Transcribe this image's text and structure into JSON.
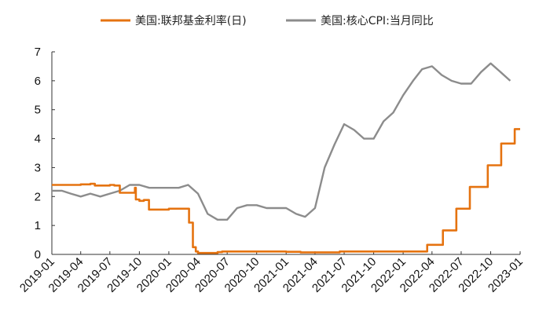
{
  "chart_data": {
    "type": "line",
    "legend_position": "top-center",
    "grid": false,
    "ylim": [
      0,
      7
    ],
    "y_ticks": [
      "0",
      "1",
      "2",
      "3",
      "4",
      "5",
      "6",
      "7"
    ],
    "x_ticks": [
      "2019-01",
      "2019-04",
      "2019-07",
      "2019-10",
      "2020-01",
      "2020-04",
      "2020-07",
      "2020-10",
      "2021-01",
      "2021-04",
      "2021-07",
      "2021-10",
      "2022-01",
      "2022-04",
      "2022-07",
      "2022-10",
      "2023-01"
    ],
    "series": [
      {
        "name": "美国:联邦基金利率(日)",
        "color": "#E57310",
        "step": true,
        "points": [
          [
            "2019-01-01",
            2.4
          ],
          [
            "2019-03-01",
            2.4
          ],
          [
            "2019-04-01",
            2.42
          ],
          [
            "2019-05-01",
            2.44
          ],
          [
            "2019-05-15",
            2.38
          ],
          [
            "2019-06-01",
            2.38
          ],
          [
            "2019-07-01",
            2.4
          ],
          [
            "2019-07-15",
            2.38
          ],
          [
            "2019-08-01",
            2.13
          ],
          [
            "2019-09-10",
            2.13
          ],
          [
            "2019-09-17",
            2.3
          ],
          [
            "2019-09-20",
            1.9
          ],
          [
            "2019-10-01",
            1.85
          ],
          [
            "2019-10-15",
            1.88
          ],
          [
            "2019-10-31",
            1.55
          ],
          [
            "2019-12-15",
            1.55
          ],
          [
            "2020-01-01",
            1.58
          ],
          [
            "2020-02-15",
            1.58
          ],
          [
            "2020-03-04",
            1.1
          ],
          [
            "2020-03-16",
            0.25
          ],
          [
            "2020-03-25",
            0.1
          ],
          [
            "2020-04-01",
            0.05
          ],
          [
            "2020-06-01",
            0.08
          ],
          [
            "2020-06-15",
            0.1
          ],
          [
            "2020-12-01",
            0.1
          ],
          [
            "2021-01-01",
            0.09
          ],
          [
            "2021-02-15",
            0.07
          ],
          [
            "2021-06-17",
            0.1
          ],
          [
            "2022-03-17",
            0.33
          ],
          [
            "2022-05-05",
            0.83
          ],
          [
            "2022-06-16",
            1.58
          ],
          [
            "2022-07-28",
            2.33
          ],
          [
            "2022-09-22",
            3.08
          ],
          [
            "2022-11-03",
            3.83
          ],
          [
            "2022-12-15",
            4.33
          ],
          [
            "2023-01-01",
            4.33
          ]
        ]
      },
      {
        "name": "美国:核心CPI:当月同比",
        "color": "#8C8C8C",
        "step": false,
        "points": [
          [
            "2019-01-01",
            2.2
          ],
          [
            "2019-02-01",
            2.2
          ],
          [
            "2019-03-01",
            2.1
          ],
          [
            "2019-04-01",
            2.0
          ],
          [
            "2019-05-01",
            2.1
          ],
          [
            "2019-06-01",
            2.0
          ],
          [
            "2019-07-01",
            2.1
          ],
          [
            "2019-08-01",
            2.2
          ],
          [
            "2019-09-01",
            2.4
          ],
          [
            "2019-10-01",
            2.4
          ],
          [
            "2019-11-01",
            2.3
          ],
          [
            "2019-12-01",
            2.3
          ],
          [
            "2020-01-01",
            2.3
          ],
          [
            "2020-02-01",
            2.3
          ],
          [
            "2020-03-01",
            2.4
          ],
          [
            "2020-04-01",
            2.1
          ],
          [
            "2020-05-01",
            1.4
          ],
          [
            "2020-06-01",
            1.2
          ],
          [
            "2020-07-01",
            1.2
          ],
          [
            "2020-08-01",
            1.6
          ],
          [
            "2020-09-01",
            1.7
          ],
          [
            "2020-10-01",
            1.7
          ],
          [
            "2020-11-01",
            1.6
          ],
          [
            "2020-12-01",
            1.6
          ],
          [
            "2021-01-01",
            1.6
          ],
          [
            "2021-02-01",
            1.4
          ],
          [
            "2021-03-01",
            1.3
          ],
          [
            "2021-04-01",
            1.6
          ],
          [
            "2021-05-01",
            3.0
          ],
          [
            "2021-06-01",
            3.8
          ],
          [
            "2021-07-01",
            4.5
          ],
          [
            "2021-08-01",
            4.3
          ],
          [
            "2021-09-01",
            4.0
          ],
          [
            "2021-10-01",
            4.0
          ],
          [
            "2021-11-01",
            4.6
          ],
          [
            "2021-12-01",
            4.9
          ],
          [
            "2022-01-01",
            5.5
          ],
          [
            "2022-02-01",
            6.0
          ],
          [
            "2022-03-01",
            6.4
          ],
          [
            "2022-04-01",
            6.5
          ],
          [
            "2022-05-01",
            6.2
          ],
          [
            "2022-06-01",
            6.0
          ],
          [
            "2022-07-01",
            5.9
          ],
          [
            "2022-08-01",
            5.9
          ],
          [
            "2022-09-01",
            6.3
          ],
          [
            "2022-10-01",
            6.6
          ],
          [
            "2022-11-01",
            6.3
          ],
          [
            "2022-12-01",
            6.0
          ]
        ]
      }
    ]
  }
}
